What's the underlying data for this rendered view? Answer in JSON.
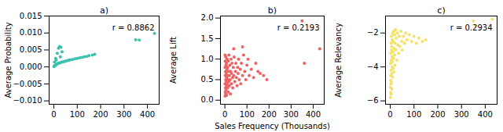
{
  "chart_data": [
    {
      "type": "scatter",
      "title": "a)",
      "y_label": "Average Probability",
      "annotation": "r = 0.8862",
      "color": "#3fc1b0",
      "xlim": [
        -20,
        450
      ],
      "xticks": [
        0,
        100,
        200,
        300,
        400
      ],
      "ylim": [
        -0.011,
        0.015
      ],
      "yticks": [
        {
          "value": -0.01,
          "label": "−0.010"
        },
        {
          "value": -0.005,
          "label": "−0.005"
        },
        {
          "value": 0,
          "label": "0.000"
        },
        {
          "value": 0.005,
          "label": "0.005"
        },
        {
          "value": 0.01,
          "label": "0.010"
        },
        {
          "value": 0.015,
          "label": "0.015"
        }
      ],
      "x": [
        1,
        2,
        3,
        3,
        5,
        6,
        8,
        8,
        10,
        12,
        15,
        18,
        20,
        25,
        30,
        35,
        40,
        45,
        50,
        55,
        60,
        65,
        70,
        80,
        90,
        100,
        110,
        120,
        130,
        140,
        150,
        165,
        175,
        10,
        15,
        20,
        25,
        28,
        30,
        35,
        350,
        365,
        430
      ],
      "values": [
        0.0001,
        0.0002,
        0.0003,
        0.0015,
        0.0004,
        0.0005,
        0.0006,
        0.0025,
        0.0007,
        0.0008,
        0.0009,
        0.001,
        0.0011,
        0.0012,
        0.0013,
        0.0014,
        0.0015,
        0.0016,
        0.0017,
        0.0018,
        0.0019,
        0.002,
        0.0021,
        0.0022,
        0.0024,
        0.0025,
        0.0027,
        0.0028,
        0.003,
        0.0031,
        0.0033,
        0.0035,
        0.0037,
        0.002,
        0.004,
        0.0055,
        0.006,
        0.003,
        0.0058,
        0.0045,
        0.008,
        0.0079,
        0.0099
      ]
    },
    {
      "type": "scatter",
      "title": "b)",
      "x_label": "Sales Frequency (Thousands)",
      "y_label": "Average Lift",
      "annotation": "r = 0.2193",
      "color": "#f06262",
      "xlim": [
        -20,
        450
      ],
      "xticks": [
        0,
        100,
        200,
        300,
        400
      ],
      "ylim": [
        -0.1,
        2.05
      ],
      "yticks": [
        {
          "value": 0,
          "label": "0.0"
        },
        {
          "value": 0.5,
          "label": "0.5"
        },
        {
          "value": 1,
          "label": "1.0"
        },
        {
          "value": 1.5,
          "label": "1.5"
        },
        {
          "value": 2,
          "label": "2.0"
        }
      ],
      "x": [
        1,
        1,
        1,
        1,
        2,
        2,
        2,
        3,
        3,
        4,
        4,
        4,
        5,
        5,
        6,
        6,
        7,
        7,
        8,
        8,
        9,
        10,
        10,
        11,
        12,
        12,
        14,
        15,
        15,
        16,
        18,
        18,
        20,
        20,
        22,
        24,
        25,
        26,
        28,
        30,
        30,
        32,
        35,
        36,
        38,
        40,
        42,
        45,
        48,
        50,
        52,
        55,
        58,
        60,
        62,
        65,
        70,
        72,
        75,
        80,
        85,
        90,
        95,
        100,
        105,
        110,
        120,
        130,
        140,
        150,
        160,
        175,
        190,
        80,
        40,
        350,
        360,
        430
      ],
      "values": [
        0.1,
        0.4,
        0.8,
        1.1,
        0.2,
        0.6,
        0.95,
        0.3,
        0.7,
        0.15,
        0.5,
        1.05,
        0.25,
        0.85,
        0.45,
        0.65,
        0.35,
        0.9,
        0.55,
        0.12,
        0.75,
        0.4,
        1.0,
        0.6,
        0.3,
        0.8,
        0.5,
        0.95,
        0.2,
        0.7,
        0.45,
        1.1,
        0.6,
        0.35,
        0.85,
        0.5,
        0.15,
        0.7,
        1.0,
        0.4,
        0.65,
        0.9,
        0.55,
        0.3,
        0.8,
        0.6,
        1.05,
        0.45,
        0.7,
        0.9,
        0.55,
        0.35,
        0.8,
        0.65,
        1.0,
        0.5,
        0.75,
        0.4,
        0.9,
        0.6,
        1.1,
        0.7,
        0.5,
        0.85,
        1.0,
        0.6,
        0.75,
        0.55,
        0.9,
        0.7,
        0.65,
        0.6,
        0.5,
        1.3,
        1.25,
        1.93,
        0.9,
        1.25
      ]
    },
    {
      "type": "scatter",
      "title": "c)",
      "y_label": "Average Relevancy",
      "annotation": "r = 0.2934",
      "color": "#f5e26b",
      "xlim": [
        -20,
        450
      ],
      "xticks": [
        0,
        100,
        200,
        300,
        400
      ],
      "ylim": [
        -6.2,
        -1.0
      ],
      "yticks": [
        {
          "value": -6,
          "label": "−6"
        },
        {
          "value": -4,
          "label": "−4"
        },
        {
          "value": -2,
          "label": "−2"
        }
      ],
      "x": [
        1,
        1,
        1,
        1,
        2,
        2,
        2,
        3,
        3,
        3,
        4,
        4,
        5,
        5,
        5,
        6,
        6,
        7,
        7,
        8,
        8,
        9,
        10,
        10,
        11,
        12,
        12,
        14,
        15,
        15,
        16,
        18,
        18,
        20,
        20,
        22,
        24,
        25,
        28,
        30,
        32,
        35,
        38,
        40,
        45,
        48,
        50,
        55,
        60,
        65,
        70,
        80,
        90,
        100,
        110,
        120,
        135,
        150,
        350,
        360,
        430
      ],
      "values": [
        -5.8,
        -5.2,
        -4.5,
        -3.8,
        -5.5,
        -4.8,
        -3.2,
        -5,
        -4.2,
        -2.6,
        -5.6,
        -3.6,
        -4.9,
        -3,
        -2.2,
        -4.4,
        -2.8,
        -5.3,
        -3.4,
        -4,
        -2.4,
        -3.7,
        -4.6,
        -2,
        -3.1,
        -4.1,
        -2.5,
        -3.5,
        -1.9,
        -4.3,
        -2.9,
        -3.3,
        -2.1,
        -3.9,
        -2.6,
        -1.8,
        -3,
        -2.3,
        -3.6,
        -2,
        -2.7,
        -3.2,
        -2.2,
        -2.8,
        -1.9,
        -2.5,
        -3,
        -2.2,
        -2.6,
        -2,
        -2.4,
        -2.1,
        -2.5,
        -2.2,
        -2.6,
        -2.3,
        -2.5,
        -2.4,
        -1.3,
        -1.55,
        -1.2
      ]
    }
  ]
}
